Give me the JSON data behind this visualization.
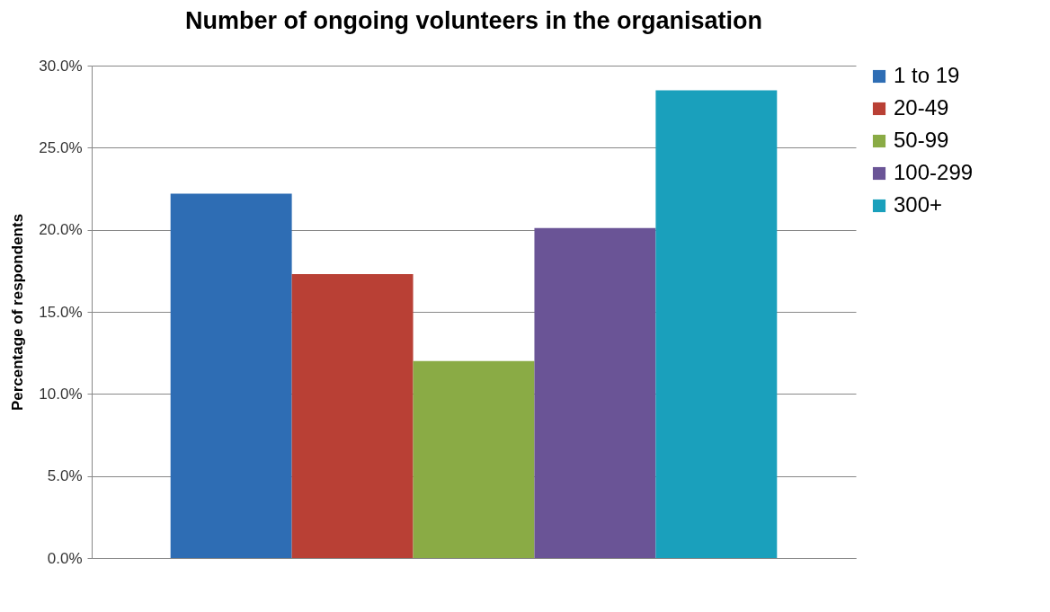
{
  "chart_data": {
    "type": "bar",
    "title": "Number of ongoing volunteers in the organisation",
    "ylabel": "Percentage of respondents",
    "categories": [
      null
    ],
    "series": [
      {
        "name": "1 to 19",
        "color": "#2e6db4",
        "values": [
          22.2
        ]
      },
      {
        "name": "20-49",
        "color": "#b94035",
        "values": [
          17.3
        ]
      },
      {
        "name": "50-99",
        "color": "#8aab45",
        "values": [
          12.0
        ]
      },
      {
        "name": "100-299",
        "color": "#6a5496",
        "values": [
          20.1
        ]
      },
      {
        "name": "300+",
        "color": "#1aa0bc",
        "values": [
          28.5
        ]
      }
    ],
    "ylim": [
      0,
      30
    ],
    "yticks": [
      {
        "value": 0,
        "label": "0.0%"
      },
      {
        "value": 5,
        "label": "5.0%"
      },
      {
        "value": 10,
        "label": "10.0%"
      },
      {
        "value": 15,
        "label": "15.0%"
      },
      {
        "value": 20,
        "label": "20.0%"
      },
      {
        "value": 25,
        "label": "25.0%"
      },
      {
        "value": 30,
        "label": "30.0%"
      }
    ],
    "grid": "y",
    "legend": "right"
  }
}
